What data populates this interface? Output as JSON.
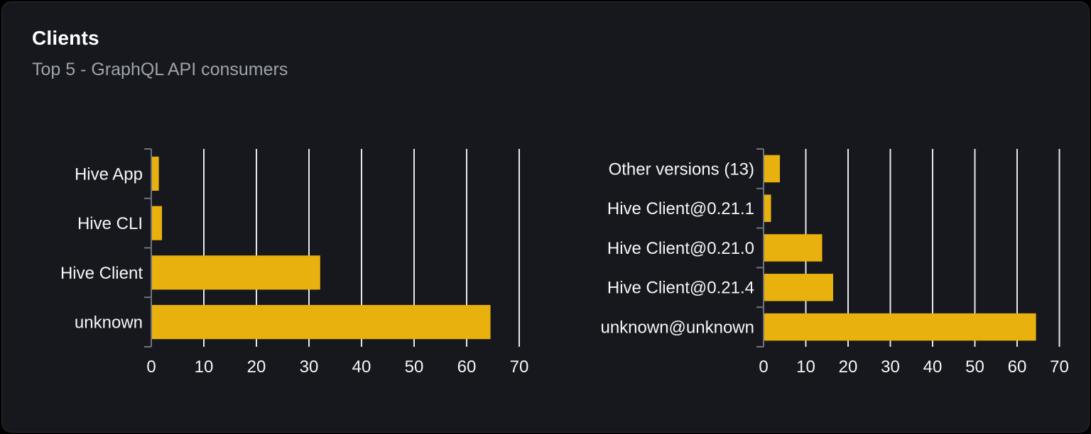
{
  "card": {
    "title": "Clients",
    "subtitle": "Top 5 - GraphQL API consumers"
  },
  "colors": {
    "page_bg": "#000000",
    "card_bg": "#16181d",
    "card_border": "#2b2d33",
    "title": "#ffffff",
    "subtitle": "#9da3ab",
    "bar": "#e9b10e",
    "gridline": "#e7e9ee",
    "axis": "#70747a",
    "tick_label": "#f5f6f7"
  },
  "chart_data": [
    {
      "type": "bar",
      "orientation": "horizontal",
      "title": "",
      "categories": [
        "Hive App",
        "Hive CLI",
        "Hive Client",
        "unknown"
      ],
      "values": [
        1.3,
        1.9,
        32,
        64.4
      ],
      "xlim": [
        0,
        70
      ],
      "x_ticks": [
        0,
        10,
        20,
        30,
        40,
        50,
        60,
        70
      ],
      "grid": true,
      "legend": false
    },
    {
      "type": "bar",
      "orientation": "horizontal",
      "title": "",
      "categories": [
        "Other versions (13)",
        "Hive Client@0.21.1",
        "Hive Client@0.21.0",
        "Hive Client@0.21.4",
        "unknown@unknown"
      ],
      "values": [
        3.7,
        1.6,
        13.7,
        16.3,
        64.3
      ],
      "xlim": [
        0,
        70
      ],
      "x_ticks": [
        0,
        10,
        20,
        30,
        40,
        50,
        60,
        70
      ],
      "grid": true,
      "legend": false
    }
  ]
}
